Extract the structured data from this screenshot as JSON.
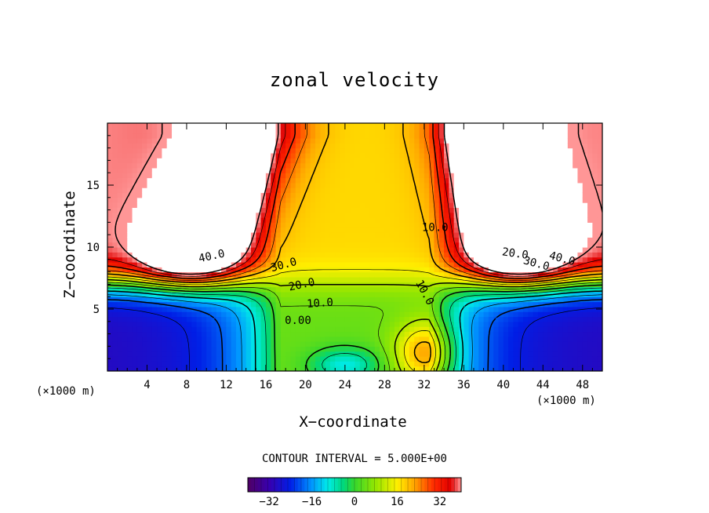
{
  "chart_data": {
    "type": "heatmap",
    "title": "zonal velocity",
    "xlabel": "X−coordinate",
    "ylabel": "Z−coordinate",
    "x_unit_left": "(×1000 m)",
    "x_unit_right": "(×1000 m)",
    "xlim": [
      0,
      50
    ],
    "ylim": [
      0,
      20
    ],
    "x_ticks": [
      4,
      8,
      12,
      16,
      20,
      24,
      28,
      32,
      36,
      40,
      44,
      48
    ],
    "y_ticks": [
      5,
      10,
      15
    ],
    "contour_interval_label": "CONTOUR INTERVAL = 5.000E+00",
    "contour_interval": 5.0,
    "contour_labels": [
      "40.0",
      "30.0",
      "20.0",
      "10.0",
      "0.00",
      "10.0",
      "10.0",
      "20.0",
      "30.0",
      "40.0"
    ],
    "colorbar": {
      "range": [
        -40,
        40
      ],
      "ticks": [
        -32,
        -16,
        0,
        16,
        32
      ],
      "tick_labels": [
        "−32",
        "−16",
        "0",
        "16",
        "32"
      ]
    }
  }
}
